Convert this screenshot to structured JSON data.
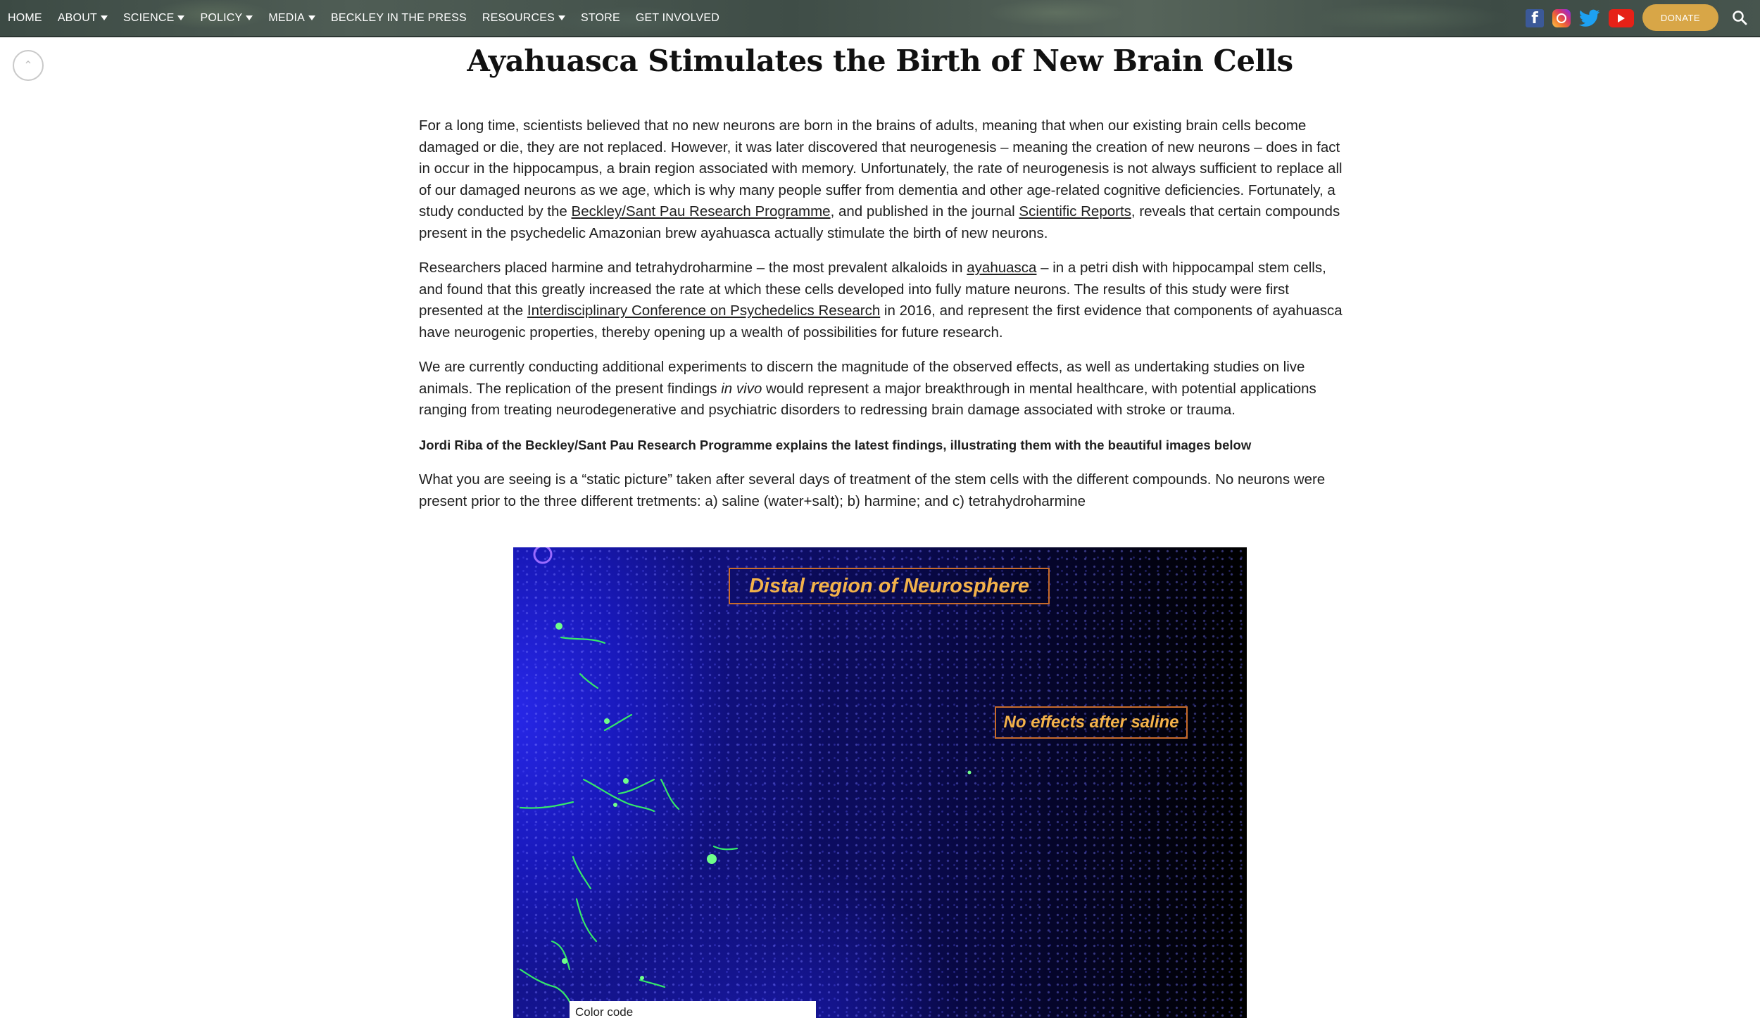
{
  "nav": {
    "items": [
      {
        "label": "HOME",
        "dropdown": false
      },
      {
        "label": "ABOUT",
        "dropdown": true
      },
      {
        "label": "SCIENCE",
        "dropdown": true
      },
      {
        "label": "POLICY",
        "dropdown": true
      },
      {
        "label": "MEDIA",
        "dropdown": true
      },
      {
        "label": "BECKLEY IN THE PRESS",
        "dropdown": false
      },
      {
        "label": "RESOURCES",
        "dropdown": true
      },
      {
        "label": "STORE",
        "dropdown": false
      },
      {
        "label": "GET INVOLVED",
        "dropdown": false
      }
    ],
    "social_icons": [
      "facebook-icon",
      "instagram-icon",
      "twitter-icon",
      "youtube-icon"
    ],
    "donate_label": "DONATE",
    "search_icon": "search-icon"
  },
  "colors": {
    "nav_bg": "#46544d",
    "donate": "#d8a647",
    "figure_label": "#f3b24a",
    "figure_label_border": "#c86b2a",
    "neuron_green": "#35e86a"
  },
  "scroll_top_icon": "chevron-up-icon",
  "article": {
    "title": "Ayahuasca Stimulates the Birth of New Brain Cells",
    "p1": {
      "t1": "For a long time, scientists believed that no new neurons are born in the brains of adults, meaning that when our existing brain cells become damaged or die, they are not replaced. However, it was later discovered that neurogenesis – meaning the creation of new neurons – does in fact in occur in the hippocampus, a brain region associated with memory. Unfortunately, the rate of neurogenesis is not always sufficient to replace all of our damaged neurons as we age, which is why many people suffer from dementia and other age-related cognitive deficiencies. Fortunately, a study conducted by the ",
      "link1": "Beckley/Sant Pau Research Programme",
      "t2": ", and published in the journal ",
      "link2": "Scientific Reports",
      "t3": ", reveals that certain compounds present in the psychedelic Amazonian brew ayahuasca actually stimulate the birth of new neurons."
    },
    "p2": {
      "t1": "Researchers placed harmine and tetrahydroharmine – the most prevalent alkaloids in ",
      "link1": "ayahuasca",
      "t2": " – in a petri dish with hippocampal stem cells, and found that this greatly increased the rate at which these cells developed into fully mature neurons. The results of this study were first presented at the ",
      "link2": "Interdisciplinary Conference on Psychedelics Research",
      "t3": " in 2016, and represent the first evidence that components of ayahuasca have neurogenic properties, thereby opening up a wealth of possibilities for future research."
    },
    "p3": {
      "t1": "We are currently conducting additional experiments to discern the magnitude of the observed effects, as well as undertaking studies on live animals. The replication of the present findings ",
      "em": "in vivo",
      "t2": " would represent a major breakthrough in mental healthcare, with potential applications ranging from treating neurodegenerative and psychiatric disorders to redressing brain damage associated with stroke or trauma."
    },
    "lead": "Jordi Riba of the Beckley/Sant Pau Research Programme explains the latest findings, illustrating them with the beautiful images below",
    "p4": "What you are seeing is a “static picture” taken after several days of treatment of the stem cells with the different compounds. No neurons were present prior to the three different tretments: a) saline (water+salt); b) harmine; and c) tetrahydroharmine"
  },
  "figure": {
    "label_top": "Distal region of Neurosphere",
    "label_right": "No effects after saline",
    "color_code": "Color code"
  }
}
